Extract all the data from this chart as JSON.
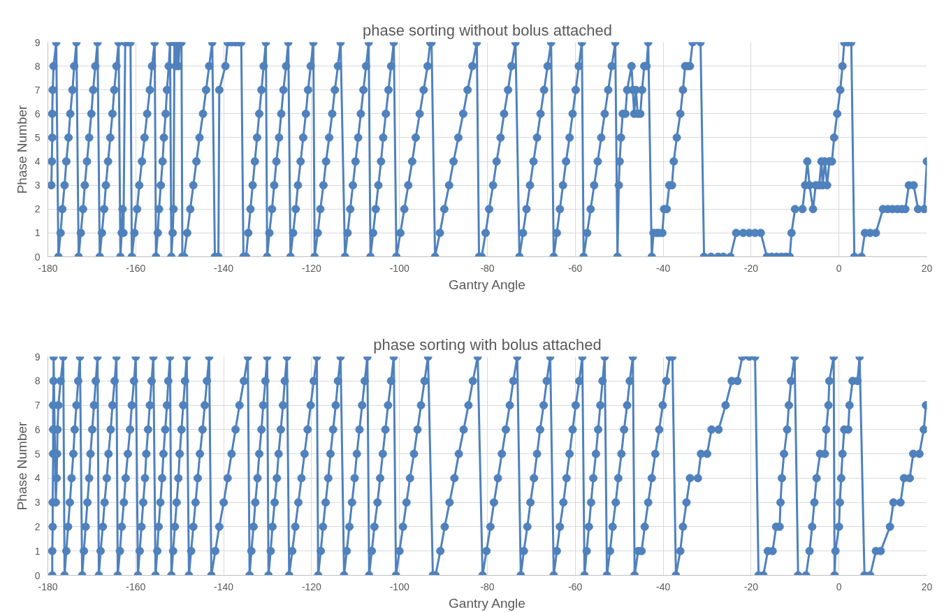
{
  "chart_data": [
    {
      "type": "line",
      "title": "phase sorting without bolus attached",
      "xlabel": "Gantry Angle",
      "ylabel": "Phase Number",
      "color": "#4f81bd",
      "marker": "circle",
      "line_style": "solid",
      "grid": true,
      "xlim": [
        -180,
        20
      ],
      "xticks": [
        -180,
        -160,
        -140,
        -120,
        -100,
        -80,
        -60,
        -40,
        -20,
        0,
        20
      ],
      "ylim": [
        0,
        9
      ],
      "yticks": [
        0,
        1,
        2,
        3,
        4,
        5,
        6,
        7,
        8,
        9
      ],
      "x": [
        -179.2,
        -179.1,
        -179.0,
        -179.0,
        -178.9,
        -178.7,
        -178.1,
        -177.6,
        -177.1,
        -176.7,
        -176.2,
        -175.8,
        -175.3,
        -174.9,
        -174.4,
        -174.0,
        -173.5,
        -173.0,
        -172.5,
        -172.0,
        -171.6,
        -171.1,
        -170.6,
        -170.1,
        -169.7,
        -169.2,
        -168.7,
        -168.2,
        -167.7,
        -167.2,
        -166.8,
        -166.3,
        -165.8,
        -165.3,
        -164.9,
        -164.4,
        -163.9,
        -163.5,
        -163.2,
        -163.0,
        -162.8,
        -162.4,
        -161.7,
        -161.2,
        -160.9,
        -160.3,
        -159.7,
        -159.2,
        -158.6,
        -158.0,
        -157.4,
        -156.8,
        -156.3,
        -155.7,
        -155.4,
        -155.0,
        -154.7,
        -154.3,
        -153.9,
        -153.6,
        -153.2,
        -152.9,
        -152.5,
        -152.2,
        -151.9,
        -151.6,
        -151.4,
        -151.2,
        -150.9,
        -150.6,
        -150.3,
        -150.0,
        -149.6,
        -149.4,
        -149.0,
        -148.3,
        -147.6,
        -146.9,
        -146.2,
        -145.5,
        -144.7,
        -144.0,
        -143.3,
        -142.6,
        -142.0,
        -141.2,
        -141.0,
        -139.6,
        -139.1,
        -138.2,
        -137.3,
        -136.5,
        -136.0,
        -135.5,
        -134.9,
        -134.4,
        -133.9,
        -133.4,
        -132.9,
        -132.4,
        -131.9,
        -131.4,
        -130.9,
        -130.4,
        -130.1,
        -129.6,
        -129.0,
        -128.5,
        -128.0,
        -127.4,
        -126.9,
        -126.4,
        -125.8,
        -125.3,
        -124.8,
        -124.2,
        -123.6,
        -123.1,
        -122.5,
        -121.9,
        -121.3,
        -120.8,
        -120.2,
        -119.6,
        -119.3,
        -118.6,
        -118.0,
        -117.3,
        -116.7,
        -116.0,
        -115.3,
        -114.7,
        -114.0,
        -113.4,
        -112.4,
        -111.8,
        -111.2,
        -110.6,
        -110.0,
        -109.4,
        -108.8,
        -108.2,
        -107.6,
        -107.0,
        -106.6,
        -106.0,
        -105.4,
        -104.8,
        -104.2,
        -103.7,
        -103.1,
        -102.5,
        -101.9,
        -101.3,
        -100.7,
        -99.8,
        -98.9,
        -98.0,
        -97.1,
        -96.3,
        -95.4,
        -94.5,
        -93.6,
        -93.0,
        -92.7,
        -91.9,
        -90.8,
        -89.8,
        -88.7,
        -87.7,
        -86.6,
        -85.5,
        -84.5,
        -83.4,
        -82.4,
        -81.9,
        -81.3,
        -80.4,
        -79.6,
        -78.7,
        -77.9,
        -77.0,
        -76.2,
        -75.3,
        -74.5,
        -73.6,
        -72.7,
        -71.9,
        -71.1,
        -70.3,
        -69.5,
        -68.7,
        -67.9,
        -67.1,
        -66.3,
        -65.5,
        -64.9,
        -64.2,
        -63.5,
        -62.8,
        -62.1,
        -61.3,
        -60.6,
        -59.9,
        -59.2,
        -58.5,
        -58.1,
        -57.3,
        -56.5,
        -55.7,
        -54.9,
        -54.1,
        -53.3,
        -52.5,
        -51.7,
        -50.9,
        -50.4,
        -50.1,
        -49.9,
        -49.6,
        -49.2,
        -48.6,
        -48.2,
        -47.2,
        -46.9,
        -46.6,
        -46.2,
        -45.8,
        -45.2,
        -44.8,
        -44.3,
        -43.8,
        -43.4,
        -42.6,
        -42.2,
        -41.5,
        -41.0,
        -40.2,
        -39.8,
        -39.2,
        -38.6,
        -38.0,
        -37.6,
        -36.9,
        -36.1,
        -35.5,
        -35.0,
        -34.4,
        -33.9,
        -33.3,
        -31.5,
        -30.7,
        -29.1,
        -27.5,
        -26.3,
        -24.7,
        -23.4,
        -21.8,
        -20.4,
        -19.1,
        -17.8,
        -16.4,
        -15.3,
        -14.2,
        -13.1,
        -12.1,
        -11.2,
        -10.8,
        -10.0,
        -8.3,
        -7.7,
        -7.2,
        -6.7,
        -5.9,
        -5.3,
        -4.5,
        -4.0,
        -3.7,
        -3.2,
        -2.7,
        -2.2,
        -1.6,
        -1.1,
        -0.4,
        0.3,
        0.8,
        1.2,
        2.0,
        2.8,
        3.5,
        5.1,
        5.9,
        7.1,
        8.4,
        10.0,
        11.1,
        12.2,
        13.3,
        14.3,
        15.1,
        15.9,
        17.0,
        18.0,
        19.4,
        20
      ],
      "values": [
        3,
        4,
        5,
        6,
        7,
        8,
        9,
        0,
        1,
        2,
        3,
        4,
        5,
        6,
        7,
        8,
        9,
        0,
        1,
        2,
        3,
        4,
        5,
        6,
        7,
        8,
        9,
        0,
        1,
        2,
        3,
        4,
        5,
        6,
        7,
        8,
        9,
        0,
        1,
        2,
        1,
        9,
        9,
        9,
        0,
        1,
        2,
        3,
        4,
        5,
        6,
        7,
        8,
        9,
        0,
        1,
        2,
        3,
        4,
        5,
        6,
        7,
        8,
        9,
        0,
        1,
        2,
        9,
        8,
        9,
        8,
        9,
        9,
        0,
        0,
        1,
        2,
        3,
        4,
        5,
        6,
        7,
        8,
        9,
        0,
        0,
        7,
        8,
        9,
        9,
        9,
        9,
        9,
        0,
        0,
        1,
        2,
        3,
        4,
        5,
        6,
        7,
        8,
        9,
        0,
        1,
        2,
        3,
        4,
        5,
        6,
        7,
        8,
        9,
        0,
        1,
        2,
        3,
        4,
        5,
        6,
        7,
        8,
        9,
        0,
        1,
        2,
        3,
        4,
        5,
        6,
        7,
        8,
        9,
        0,
        1,
        2,
        3,
        4,
        5,
        6,
        7,
        8,
        9,
        0,
        1,
        2,
        3,
        4,
        5,
        6,
        7,
        8,
        9,
        0,
        1,
        2,
        3,
        4,
        5,
        6,
        7,
        8,
        9,
        9,
        0,
        1,
        2,
        3,
        4,
        5,
        6,
        7,
        8,
        9,
        0,
        0,
        1,
        2,
        3,
        4,
        5,
        6,
        7,
        8,
        9,
        0,
        1,
        2,
        3,
        4,
        5,
        6,
        7,
        8,
        9,
        0,
        1,
        2,
        3,
        4,
        5,
        6,
        7,
        8,
        9,
        0,
        1,
        2,
        3,
        4,
        5,
        6,
        7,
        8,
        9,
        0,
        3,
        4,
        5,
        6,
        6,
        7,
        8,
        7,
        6,
        7,
        6,
        6,
        7,
        8,
        8,
        9,
        0,
        1,
        1,
        1,
        1,
        2,
        2,
        3,
        3,
        4,
        5,
        6,
        7,
        8,
        8,
        8,
        9,
        9,
        0,
        0,
        0,
        0,
        0,
        1,
        1,
        1,
        1,
        1,
        0,
        0,
        0,
        0,
        0,
        0,
        1,
        2,
        2,
        3,
        4,
        3,
        2,
        3,
        3,
        4,
        3,
        4,
        3,
        4,
        4,
        5,
        6,
        7,
        8,
        9,
        9,
        9,
        0,
        0,
        1,
        1,
        1,
        2,
        2,
        2,
        2,
        2,
        2,
        3,
        3,
        2,
        2,
        4
      ]
    },
    {
      "type": "line",
      "title": "phase sorting with bolus attached",
      "xlabel": "Gantry Angle",
      "ylabel": "Phase Number",
      "color": "#4f81bd",
      "marker": "circle",
      "line_style": "solid",
      "grid": true,
      "xlim": [
        -180,
        20
      ],
      "xticks": [
        -180,
        -160,
        -140,
        -120,
        -100,
        -80,
        -60,
        -40,
        -20,
        0,
        20
      ],
      "ylim": [
        0,
        9
      ],
      "yticks": [
        0,
        1,
        2,
        3,
        4,
        5,
        6,
        7,
        8,
        9
      ],
      "x": [
        -179.0,
        -179.0,
        -178.9,
        -178.9,
        -178.8,
        -178.8,
        -178.8,
        -178.7,
        -178.7,
        -178.2,
        -178.0,
        -177.9,
        -177.8,
        -177.6,
        -177.1,
        -176.5,
        -176.2,
        -175.8,
        -175.4,
        -175.0,
        -174.6,
        -174.2,
        -173.9,
        -173.5,
        -173.1,
        -172.7,
        -172.2,
        -171.8,
        -171.4,
        -171.0,
        -170.6,
        -170.3,
        -169.9,
        -169.5,
        -169.1,
        -168.7,
        -168.4,
        -168.0,
        -167.5,
        -167.1,
        -166.6,
        -166.2,
        -165.7,
        -165.3,
        -164.8,
        -164.4,
        -164.1,
        -163.6,
        -163.2,
        -162.7,
        -162.3,
        -161.8,
        -161.3,
        -160.9,
        -160.4,
        -160.0,
        -159.5,
        -159.1,
        -158.7,
        -158.3,
        -157.9,
        -157.6,
        -157.2,
        -156.8,
        -156.4,
        -156.0,
        -155.5,
        -155.1,
        -154.8,
        -154.4,
        -154.0,
        -153.7,
        -153.3,
        -152.9,
        -152.6,
        -152.2,
        -151.9,
        -151.5,
        -151.1,
        -150.7,
        -150.3,
        -150.0,
        -149.6,
        -149.2,
        -148.8,
        -148.4,
        -147.9,
        -147.4,
        -146.9,
        -146.4,
        -145.9,
        -145.4,
        -144.8,
        -144.3,
        -143.8,
        -143.3,
        -142.8,
        -141.9,
        -141.0,
        -140.0,
        -139.1,
        -138.2,
        -137.3,
        -136.4,
        -135.4,
        -134.5,
        -134.1,
        -133.7,
        -133.2,
        -132.8,
        -132.3,
        -131.9,
        -131.4,
        -131.0,
        -130.5,
        -130.1,
        -129.8,
        -129.3,
        -128.9,
        -128.4,
        -127.9,
        -127.5,
        -127.0,
        -126.5,
        -126.1,
        -125.6,
        -125.1,
        -124.4,
        -123.7,
        -123.0,
        -122.3,
        -121.6,
        -120.9,
        -120.2,
        -119.5,
        -118.8,
        -118.5,
        -117.9,
        -117.4,
        -116.8,
        -116.2,
        -115.7,
        -115.1,
        -114.5,
        -114.0,
        -113.4,
        -112.6,
        -112.0,
        -111.4,
        -110.8,
        -110.2,
        -109.7,
        -109.1,
        -108.5,
        -107.9,
        -107.3,
        -106.9,
        -106.3,
        -105.7,
        -105.0,
        -104.4,
        -103.8,
        -103.2,
        -102.6,
        -101.9,
        -101.3,
        -100.8,
        -100.0,
        -99.2,
        -98.4,
        -97.6,
        -96.7,
        -95.9,
        -95.1,
        -94.3,
        -93.5,
        -92.4,
        -91.8,
        -90.7,
        -89.7,
        -88.6,
        -87.5,
        -86.5,
        -85.4,
        -84.3,
        -83.3,
        -82.2,
        -81.1,
        -80.2,
        -79.3,
        -78.5,
        -77.6,
        -76.7,
        -75.8,
        -74.9,
        -74.1,
        -73.2,
        -72.4,
        -71.7,
        -70.9,
        -70.2,
        -69.4,
        -68.7,
        -68.0,
        -67.2,
        -66.5,
        -65.7,
        -64.9,
        -64.2,
        -63.5,
        -62.7,
        -62.0,
        -61.3,
        -60.6,
        -59.9,
        -59.1,
        -58.4,
        -57.9,
        -57.4,
        -56.9,
        -56.4,
        -55.9,
        -55.3,
        -54.8,
        -54.3,
        -53.8,
        -53.3,
        -52.8,
        -52.1,
        -51.5,
        -50.8,
        -50.2,
        -49.5,
        -48.9,
        -48.2,
        -47.6,
        -46.9,
        -46.5,
        -45.7,
        -44.9,
        -44.2,
        -43.4,
        -42.6,
        -41.8,
        -40.9,
        -40.1,
        -39.3,
        -38.5,
        -37.9,
        -37.1,
        -36.1,
        -35.5,
        -34.7,
        -33.9,
        -32.1,
        -31.4,
        -30.0,
        -29.0,
        -27.4,
        -25.8,
        -24.4,
        -23.1,
        -22.0,
        -20.4,
        -19.1,
        -18.3,
        -17.2,
        -16.2,
        -15.1,
        -14.3,
        -13.5,
        -13.3,
        -13.0,
        -12.5,
        -11.8,
        -11.4,
        -10.9,
        -10.1,
        -9.3,
        -7.5,
        -6.7,
        -6.1,
        -5.6,
        -5.1,
        -4.3,
        -3.2,
        -2.9,
        -2.4,
        -2.2,
        -1.2,
        -1.0,
        -0.8,
        0.0,
        0.2,
        0.5,
        0.8,
        1.2,
        2.1,
        2.4,
        3.1,
        4.2,
        4.7,
        5.8,
        7.1,
        8.4,
        9.5,
        11.6,
        12.4,
        14.0,
        14.8,
        16.1,
        16.9,
        18.3,
        19.3,
        19.8
      ],
      "values": [
        0,
        1,
        2,
        3,
        5,
        6,
        7,
        8,
        9,
        3,
        4,
        5,
        6,
        7,
        8,
        9,
        0,
        1,
        2,
        3,
        4,
        5,
        6,
        7,
        8,
        9,
        0,
        1,
        2,
        3,
        4,
        5,
        6,
        7,
        8,
        9,
        0,
        1,
        2,
        3,
        4,
        5,
        6,
        7,
        8,
        9,
        0,
        1,
        2,
        3,
        4,
        5,
        6,
        7,
        8,
        9,
        0,
        1,
        2,
        3,
        4,
        5,
        6,
        7,
        8,
        9,
        0,
        1,
        2,
        3,
        4,
        5,
        6,
        7,
        8,
        9,
        0,
        1,
        2,
        3,
        4,
        5,
        6,
        7,
        8,
        9,
        0,
        1,
        2,
        3,
        4,
        5,
        6,
        7,
        8,
        9,
        0,
        1,
        2,
        3,
        4,
        5,
        6,
        7,
        8,
        9,
        0,
        1,
        2,
        3,
        4,
        5,
        6,
        7,
        8,
        9,
        0,
        1,
        2,
        3,
        4,
        5,
        6,
        7,
        8,
        9,
        0,
        1,
        2,
        3,
        4,
        5,
        6,
        7,
        8,
        9,
        0,
        1,
        2,
        3,
        4,
        5,
        6,
        7,
        8,
        9,
        0,
        1,
        2,
        3,
        4,
        5,
        6,
        7,
        8,
        9,
        0,
        1,
        2,
        3,
        4,
        5,
        6,
        7,
        8,
        9,
        0,
        1,
        2,
        3,
        4,
        5,
        6,
        7,
        8,
        9,
        0,
        0,
        1,
        2,
        3,
        4,
        5,
        6,
        7,
        8,
        9,
        0,
        1,
        2,
        3,
        4,
        5,
        6,
        7,
        8,
        9,
        0,
        1,
        2,
        3,
        4,
        5,
        6,
        7,
        8,
        9,
        0,
        1,
        2,
        3,
        4,
        5,
        6,
        7,
        8,
        9,
        0,
        1,
        2,
        3,
        4,
        5,
        6,
        7,
        8,
        9,
        0,
        1,
        2,
        3,
        4,
        5,
        6,
        7,
        8,
        9,
        0,
        1,
        1,
        2,
        3,
        4,
        5,
        6,
        7,
        8,
        9,
        9,
        0,
        1,
        2,
        3,
        4,
        4,
        5,
        5,
        6,
        6,
        7,
        8,
        8,
        9,
        9,
        9,
        0,
        0,
        1,
        1,
        2,
        2,
        3,
        4,
        5,
        6,
        7,
        8,
        9,
        0,
        0,
        1,
        2,
        3,
        4,
        5,
        5,
        6,
        7,
        8,
        9,
        0,
        1,
        2,
        3,
        4,
        5,
        6,
        6,
        7,
        8,
        8,
        9,
        0,
        0,
        1,
        1,
        2,
        3,
        3,
        4,
        4,
        5,
        5,
        6,
        7
      ]
    }
  ]
}
